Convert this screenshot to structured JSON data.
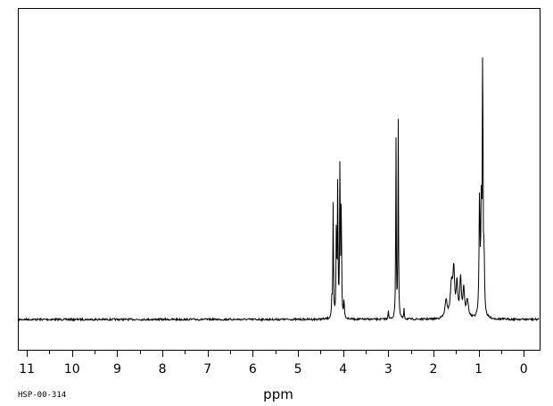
{
  "chart_data": {
    "type": "line",
    "xlabel": "ppm",
    "ylabel": "",
    "x_reversed": true,
    "xlim": [
      11.2,
      -0.35
    ],
    "ylim": [
      0,
      1
    ],
    "x_ticks": [
      "11",
      "10",
      "9",
      "8",
      "7",
      "6",
      "5",
      "4",
      "3",
      "2",
      "1",
      "0"
    ],
    "footer_code": "HSP-00-314",
    "baseline": 0.02,
    "peaks": [
      {
        "ppm": 4.25,
        "height": 0.06,
        "width": 0.008
      },
      {
        "ppm": 4.22,
        "height": 0.4,
        "width": 0.008
      },
      {
        "ppm": 4.15,
        "height": 0.3,
        "width": 0.008
      },
      {
        "ppm": 4.12,
        "height": 0.48,
        "width": 0.008
      },
      {
        "ppm": 4.07,
        "height": 0.57,
        "width": 0.008
      },
      {
        "ppm": 4.04,
        "height": 0.4,
        "width": 0.008
      },
      {
        "ppm": 3.98,
        "height": 0.07,
        "width": 0.008
      },
      {
        "ppm": 3.0,
        "height": 0.04,
        "width": 0.006
      },
      {
        "ppm": 2.83,
        "height": 0.65,
        "width": 0.007
      },
      {
        "ppm": 2.78,
        "height": 0.7,
        "width": 0.007
      },
      {
        "ppm": 2.65,
        "height": 0.04,
        "width": 0.006
      },
      {
        "ppm": 1.72,
        "height": 0.06,
        "width": 0.03
      },
      {
        "ppm": 1.6,
        "height": 0.12,
        "width": 0.03
      },
      {
        "ppm": 1.55,
        "height": 0.16,
        "width": 0.02
      },
      {
        "ppm": 1.48,
        "height": 0.12,
        "width": 0.02
      },
      {
        "ppm": 1.4,
        "height": 0.14,
        "width": 0.02
      },
      {
        "ppm": 1.33,
        "height": 0.1,
        "width": 0.02
      },
      {
        "ppm": 1.25,
        "height": 0.06,
        "width": 0.03
      },
      {
        "ppm": 0.98,
        "height": 0.42,
        "width": 0.012
      },
      {
        "ppm": 0.94,
        "height": 0.4,
        "width": 0.012
      },
      {
        "ppm": 0.91,
        "height": 0.98,
        "width": 0.008
      },
      {
        "ppm": 0.88,
        "height": 0.2,
        "width": 0.012
      }
    ]
  }
}
